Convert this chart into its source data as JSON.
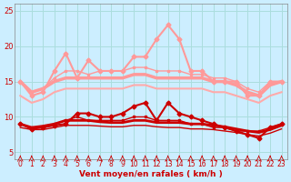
{
  "x": [
    0,
    1,
    2,
    3,
    4,
    5,
    6,
    7,
    8,
    9,
    10,
    11,
    12,
    13,
    14,
    15,
    16,
    17,
    18,
    19,
    20,
    21,
    22,
    23
  ],
  "background_color": "#cceeff",
  "grid_color": "#aadddd",
  "xlabel": "Vent moyen/en rafales ( km/h )",
  "xlabel_color": "#cc0000",
  "tick_color": "#cc0000",
  "ylim": [
    4,
    26
  ],
  "yticks": [
    5,
    10,
    15,
    20,
    25
  ],
  "series": [
    {
      "values": [
        9.0,
        8.3,
        8.5,
        8.8,
        9.0,
        10.5,
        10.5,
        10.0,
        10.0,
        10.5,
        11.5,
        12.0,
        9.5,
        12.0,
        10.5,
        10.0,
        9.5,
        9.0,
        8.5,
        8.0,
        7.5,
        7.0,
        8.5,
        9.0
      ],
      "color": "#cc0000",
      "linewidth": 1.5,
      "marker": "D",
      "markersize": 2.5,
      "zorder": 5
    },
    {
      "values": [
        9.0,
        8.5,
        8.5,
        9.0,
        9.5,
        10.0,
        9.5,
        9.5,
        9.5,
        9.5,
        10.0,
        10.0,
        9.5,
        9.5,
        9.5,
        9.0,
        9.0,
        8.5,
        8.5,
        8.0,
        8.0,
        8.0,
        8.5,
        9.0
      ],
      "color": "#cc0000",
      "linewidth": 1.0,
      "marker": "s",
      "markersize": 1.5,
      "zorder": 4
    },
    {
      "values": [
        9.0,
        8.5,
        8.7,
        9.0,
        9.5,
        9.5,
        9.5,
        9.3,
        9.2,
        9.2,
        9.5,
        9.5,
        9.2,
        9.2,
        9.2,
        9.0,
        9.0,
        8.8,
        8.6,
        8.3,
        8.0,
        7.8,
        8.2,
        8.8
      ],
      "color": "#cc0000",
      "linewidth": 2.0,
      "marker": null,
      "markersize": 0,
      "zorder": 3
    },
    {
      "values": [
        8.5,
        8.2,
        8.2,
        8.5,
        8.8,
        8.8,
        8.8,
        8.7,
        8.6,
        8.6,
        8.8,
        8.8,
        8.6,
        8.5,
        8.5,
        8.3,
        8.3,
        8.2,
        8.0,
        7.8,
        7.5,
        7.3,
        7.7,
        8.3
      ],
      "color": "#cc0000",
      "linewidth": 1.0,
      "marker": null,
      "markersize": 0,
      "zorder": 3
    },
    {
      "values": [
        15.0,
        13.0,
        13.5,
        16.5,
        19.0,
        15.5,
        18.0,
        16.5,
        16.5,
        16.5,
        18.5,
        18.5,
        21.0,
        23.0,
        21.0,
        16.5,
        16.5,
        15.0,
        15.0,
        15.0,
        13.0,
        13.0,
        15.0,
        15.0
      ],
      "color": "#ff9999",
      "linewidth": 1.5,
      "marker": "D",
      "markersize": 2.5,
      "zorder": 5
    },
    {
      "values": [
        15.0,
        13.5,
        14.0,
        15.5,
        16.5,
        16.5,
        16.0,
        16.5,
        16.5,
        16.5,
        17.0,
        17.0,
        16.5,
        16.5,
        16.5,
        16.0,
        16.0,
        15.5,
        15.5,
        15.0,
        14.0,
        13.5,
        15.0,
        15.0
      ],
      "color": "#ff9999",
      "linewidth": 1.0,
      "marker": "s",
      "markersize": 1.5,
      "zorder": 4
    },
    {
      "values": [
        15.0,
        13.5,
        14.0,
        15.0,
        15.5,
        15.5,
        15.5,
        15.5,
        15.5,
        15.5,
        16.0,
        16.0,
        15.5,
        15.5,
        15.5,
        15.5,
        15.5,
        15.0,
        15.0,
        14.5,
        13.5,
        13.0,
        14.5,
        15.0
      ],
      "color": "#ff9999",
      "linewidth": 2.5,
      "marker": null,
      "markersize": 0,
      "zorder": 3
    },
    {
      "values": [
        13.0,
        12.0,
        12.5,
        13.5,
        14.0,
        14.0,
        14.0,
        14.0,
        14.0,
        14.0,
        14.5,
        14.5,
        14.0,
        14.0,
        14.0,
        14.0,
        14.0,
        13.5,
        13.5,
        13.0,
        12.5,
        12.0,
        13.0,
        13.5
      ],
      "color": "#ffaaaa",
      "linewidth": 1.5,
      "marker": null,
      "markersize": 0,
      "zorder": 2
    }
  ],
  "wind_arrow_color": "#cc0000"
}
